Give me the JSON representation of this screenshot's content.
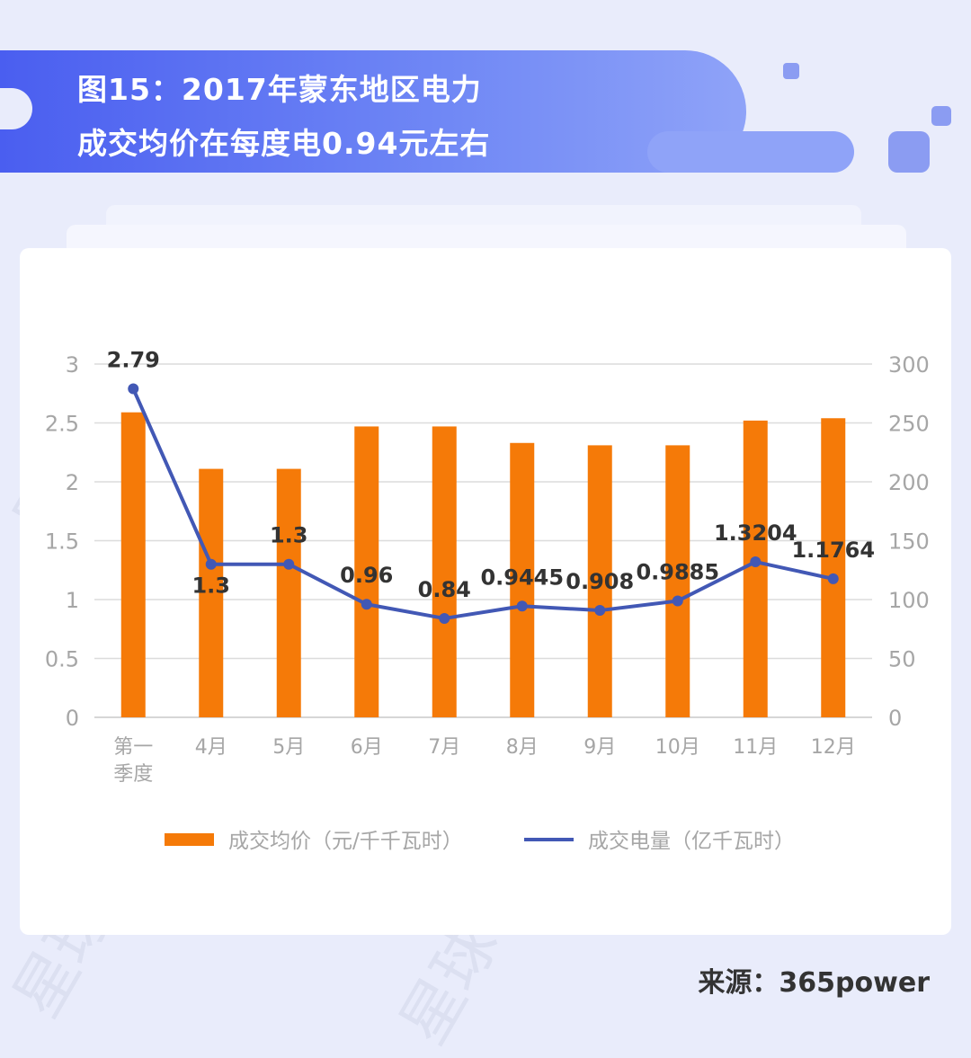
{
  "title": {
    "line1": "图15：2017年蒙东地区电力",
    "line2": "成交均价在每度电0.94元左右"
  },
  "source": "来源：365power",
  "watermark": "星球日报",
  "colors": {
    "bar": "#f57a08",
    "line": "#4258b5",
    "accent": "#5567f0"
  },
  "chart_data": {
    "type": "bar+line",
    "categories": [
      [
        "第一",
        "季度"
      ],
      [
        "4月"
      ],
      [
        "5月"
      ],
      [
        "6月"
      ],
      [
        "7月"
      ],
      [
        "8月"
      ],
      [
        "9月"
      ],
      [
        "10月"
      ],
      [
        "11月"
      ],
      [
        "12月"
      ]
    ],
    "left_axis": {
      "ticks": [
        "0",
        "0.5",
        "1",
        "1.5",
        "2",
        "2.5",
        "3"
      ],
      "range": [
        0,
        3
      ]
    },
    "right_axis": {
      "ticks": [
        "0",
        "50",
        "100",
        "150",
        "200",
        "250",
        "300"
      ],
      "range": [
        0,
        300
      ]
    },
    "series": [
      {
        "name": "成交均价（元/千千瓦时）",
        "type": "bar",
        "axis": "right",
        "values": [
          259,
          211,
          211,
          247,
          247,
          233,
          231,
          231,
          252,
          254
        ]
      },
      {
        "name": "成交电量（亿千瓦时）",
        "type": "line",
        "axis": "left",
        "values": [
          2.79,
          1.3,
          1.3,
          0.96,
          0.84,
          0.9445,
          0.908,
          0.9885,
          1.3204,
          1.1764
        ],
        "labels": [
          "2.79",
          "1.3",
          "1.3",
          "0.96",
          "0.84",
          "0.9445",
          "0.908",
          "0.9885",
          "1.3204",
          "1.1764"
        ]
      }
    ],
    "grid": true,
    "legend": "bottom"
  }
}
